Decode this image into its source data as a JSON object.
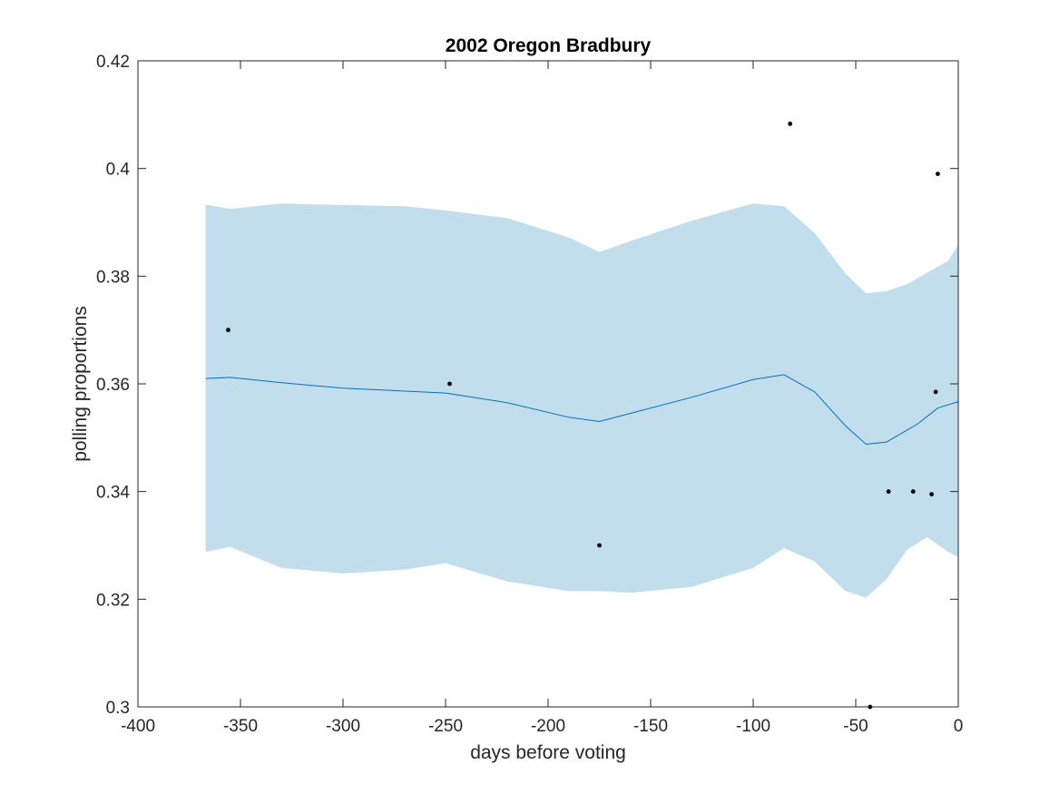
{
  "chart_data": {
    "type": "line",
    "title": "2002 Oregon Bradbury",
    "xlabel": "days before voting",
    "ylabel": "polling proportions",
    "xlim": [
      -400,
      0
    ],
    "ylim": [
      0.3,
      0.42
    ],
    "xticks": [
      -400,
      -350,
      -300,
      -250,
      -200,
      -150,
      -100,
      -50,
      0
    ],
    "xtick_labels": [
      "-400",
      "-350",
      "-300",
      "-250",
      "-200",
      "-150",
      "-100",
      "-50",
      "0"
    ],
    "yticks": [
      0.3,
      0.32,
      0.34,
      0.36,
      0.38,
      0.4,
      0.42
    ],
    "ytick_labels": [
      "0.3",
      "0.32",
      "0.34",
      "0.36",
      "0.38",
      "0.4",
      "0.42"
    ],
    "grid": false,
    "colors": {
      "line": "#0072BD",
      "band": "#C2DDEC",
      "points": "#000000",
      "axes": "#262626"
    },
    "trend": {
      "x": [
        -367,
        -355,
        -330,
        -300,
        -250,
        -220,
        -190,
        -175,
        -160,
        -130,
        -100,
        -85,
        -70,
        -55,
        -45,
        -35,
        -20,
        -10,
        0
      ],
      "y": [
        0.361,
        0.3612,
        0.3602,
        0.3592,
        0.3583,
        0.3565,
        0.3538,
        0.353,
        0.3545,
        0.3575,
        0.3608,
        0.3617,
        0.3585,
        0.3522,
        0.3488,
        0.3492,
        0.3525,
        0.3555,
        0.3567
      ]
    },
    "band": {
      "x": [
        -367,
        -355,
        -330,
        -300,
        -270,
        -250,
        -220,
        -190,
        -175,
        -160,
        -130,
        -100,
        -85,
        -70,
        -55,
        -45,
        -35,
        -25,
        -15,
        -5,
        0
      ],
      "upper": [
        0.3933,
        0.3925,
        0.3935,
        0.3932,
        0.393,
        0.3922,
        0.3908,
        0.3872,
        0.3845,
        0.3865,
        0.3903,
        0.3935,
        0.393,
        0.388,
        0.3805,
        0.3768,
        0.3772,
        0.3785,
        0.3807,
        0.3828,
        0.3858
      ],
      "lower": [
        0.3288,
        0.3297,
        0.3258,
        0.3248,
        0.3255,
        0.3267,
        0.3233,
        0.3215,
        0.3215,
        0.3212,
        0.3223,
        0.3258,
        0.3295,
        0.327,
        0.3215,
        0.3203,
        0.3237,
        0.3292,
        0.3315,
        0.3288,
        0.3278
      ]
    },
    "points": {
      "x": [
        -356,
        -248,
        -175,
        -82,
        -43,
        -34,
        -22,
        -13,
        -11,
        -10
      ],
      "y": [
        0.37,
        0.36,
        0.33,
        0.4083,
        0.3,
        0.34,
        0.34,
        0.3395,
        0.3585,
        0.399
      ]
    }
  }
}
